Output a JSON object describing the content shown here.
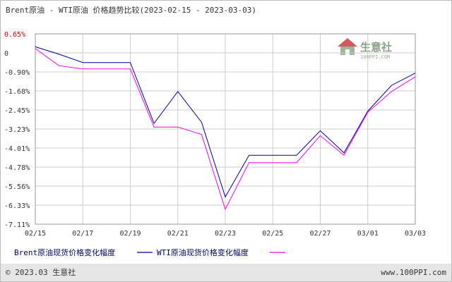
{
  "chart_data": {
    "type": "line",
    "title": "Brent原油 - WTI原油 价格趋势比较(2023-02-15 - 2023-03-03)",
    "x": [
      "02/15",
      "02/16",
      "02/17",
      "02/18",
      "02/19",
      "02/20",
      "02/21",
      "02/22",
      "02/23",
      "02/24",
      "02/25",
      "02/26",
      "02/27",
      "02/28",
      "03/01",
      "03/02",
      "03/03"
    ],
    "xticks": [
      "02/15",
      "02/17",
      "02/19",
      "02/21",
      "02/23",
      "02/25",
      "02/27",
      "03/01",
      "03/03"
    ],
    "yticks": [
      "0.65%",
      "0",
      "-0.90%",
      "-1.68%",
      "-2.45%",
      "-3.23%",
      "-4.01%",
      "-4.78%",
      "-5.56%",
      "-6.33%",
      "-7.11%"
    ],
    "ylim": [
      -7.11,
      0.65
    ],
    "grid": true,
    "legend_position": "bottom-left",
    "series": [
      {
        "name": "Brent原油现货价格变化幅度",
        "color": "#000099",
        "values": [
          0.12,
          -0.18,
          -0.52,
          -0.52,
          -0.52,
          -3.0,
          -1.7,
          -2.95,
          -6.0,
          -4.3,
          -4.3,
          -4.3,
          -3.3,
          -4.2,
          -2.5,
          -1.45,
          -0.95
        ]
      },
      {
        "name": "WTI原油现货价格变化幅度",
        "color": "#ff00ff",
        "values": [
          0.05,
          -0.65,
          -0.78,
          -0.78,
          -0.78,
          -3.15,
          -3.15,
          -3.45,
          -6.5,
          -4.6,
          -4.6,
          -4.6,
          -3.5,
          -4.3,
          -2.55,
          -1.7,
          -1.1
        ]
      }
    ]
  },
  "watermark": {
    "name": "生意社",
    "url": "100PPI.COM",
    "icon": "house-logo-icon"
  },
  "footer": {
    "left": "© 2023.03 生意社",
    "right": "www.100PPI.com"
  },
  "colors": {
    "footer_bg": "#e6e6e6",
    "grid": "#cccccc",
    "axis": "#999999"
  }
}
